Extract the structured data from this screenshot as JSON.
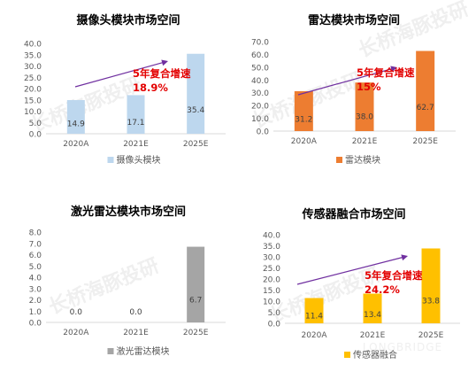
{
  "chart_data": [
    {
      "type": "bar",
      "title": "摄像头模块市场空间",
      "categories": [
        "2020A",
        "2021E",
        "2025E"
      ],
      "values": [
        14.9,
        17.1,
        35.4
      ],
      "series": [
        {
          "name": "摄像头模块",
          "values": [
            14.9,
            17.1,
            35.4
          ]
        }
      ],
      "ylim": [
        0,
        40
      ],
      "yticks": [
        "0.0",
        "5.0",
        "10.0",
        "15.0",
        "20.0",
        "25.0",
        "30.0",
        "35.0",
        "40.0"
      ],
      "data_labels": [
        "14.9",
        "17.1",
        "35.4"
      ],
      "annotation": [
        "5年复合增速",
        "18.9%"
      ],
      "color": "#bdd7ee",
      "legend": "bottom"
    },
    {
      "type": "bar",
      "title": "雷达模块市场空间",
      "categories": [
        "2020A",
        "2021E",
        "2025E"
      ],
      "values": [
        31.2,
        38.0,
        62.7
      ],
      "series": [
        {
          "name": "雷达模块",
          "values": [
            31.2,
            38.0,
            62.7
          ]
        }
      ],
      "ylim": [
        0,
        70
      ],
      "yticks": [
        "0.0",
        "10.0",
        "20.0",
        "30.0",
        "40.0",
        "50.0",
        "60.0",
        "70.0"
      ],
      "data_labels": [
        "31.2",
        "38.0",
        "62.7"
      ],
      "annotation": [
        "5年复合增速",
        "15%"
      ],
      "color": "#ed7d31",
      "legend": "bottom"
    },
    {
      "type": "bar",
      "title": "激光雷达模块市场空间",
      "categories": [
        "2020A",
        "2021E",
        "2025E"
      ],
      "values": [
        0.0,
        0.0,
        6.7
      ],
      "series": [
        {
          "name": "激光雷达模块",
          "values": [
            0.0,
            0.0,
            6.7
          ]
        }
      ],
      "ylim": [
        0,
        8
      ],
      "yticks": [
        "0.0",
        "1.0",
        "2.0",
        "3.0",
        "4.0",
        "5.0",
        "6.0",
        "7.0",
        "8.0"
      ],
      "data_labels": [
        "0.0",
        "0.0",
        "6.7"
      ],
      "annotation": [],
      "color": "#a5a5a5",
      "legend": "bottom"
    },
    {
      "type": "bar",
      "title": "传感器融合市场空间",
      "categories": [
        "2020A",
        "2021E",
        "2025E"
      ],
      "values": [
        11.4,
        13.4,
        33.8
      ],
      "series": [
        {
          "name": "传感器融合",
          "values": [
            11.4,
            13.4,
            33.8
          ]
        }
      ],
      "ylim": [
        0,
        40
      ],
      "yticks": [
        "0.0",
        "5.0",
        "10.0",
        "15.0",
        "20.0",
        "25.0",
        "30.0",
        "35.0",
        "40.0"
      ],
      "data_labels": [
        "11.4",
        "13.4",
        "33.8"
      ],
      "annotation": [
        "5年复合增速",
        "24.2%"
      ],
      "color": "#ffc000",
      "legend": "bottom"
    }
  ],
  "watermark": {
    "text": "长桥海豚投研",
    "brand": "LONGBRIDGE"
  },
  "colors": {
    "annotation": "#e30000",
    "arrow": "#7030a0",
    "axis_text": "#595959",
    "axis_line": "#d9d9d9"
  }
}
